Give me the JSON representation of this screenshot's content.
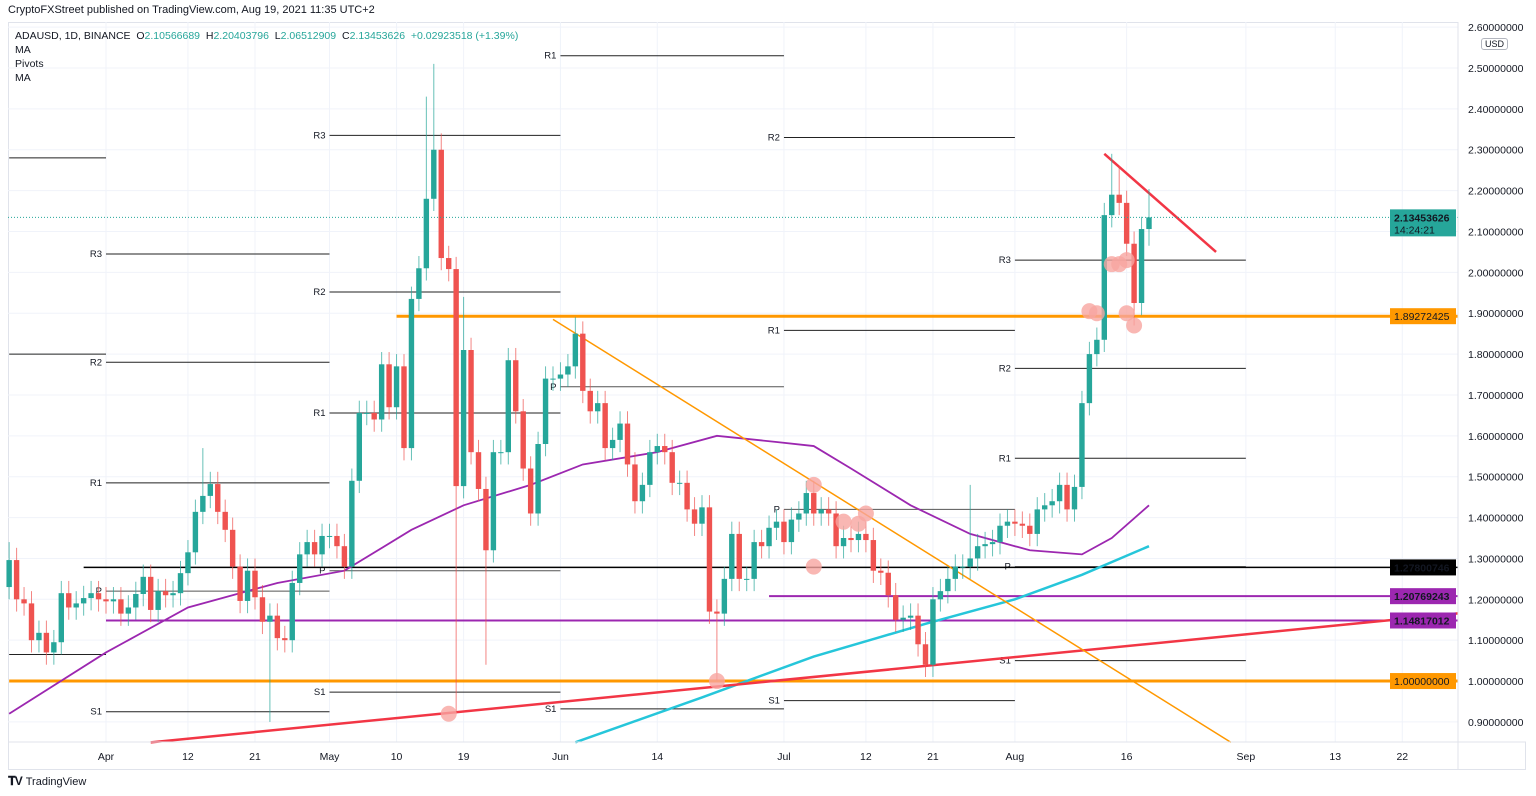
{
  "header": {
    "published": "CryptoFXStreet published on TradingView.com, Aug 19, 2021 11:35 UTC+2",
    "symbol": "ADAUSD, 1D, BINANCE",
    "open_label": "O",
    "open": "2.10566689",
    "high_label": "H",
    "high": "2.20403796",
    "low_label": "L",
    "low": "2.06512909",
    "close_label": "C",
    "close": "2.13453626",
    "change": "+0.02923518 (+1.39%)",
    "indicators": [
      "MA",
      "Pivots",
      "MA"
    ]
  },
  "footer": {
    "logo_text": "TradingView",
    "logo_icon": "tradingview-logo-icon"
  },
  "colors": {
    "up": "#26a69a",
    "down": "#ef5350",
    "orange": "#ff9800",
    "purple": "#9c27b0",
    "cyan": "#26c6da",
    "red_trend": "#f23645",
    "black": "#000000",
    "marker": "#f8a5a0"
  },
  "chart_data": {
    "type": "candlestick",
    "currency": "USD",
    "ylim": [
      0.85,
      2.6
    ],
    "yticks": [
      "2.60000000",
      "2.50000000",
      "2.40000000",
      "2.30000000",
      "2.20000000",
      "2.10000000",
      "2.00000000",
      "1.90000000",
      "1.80000000",
      "1.70000000",
      "1.60000000",
      "1.50000000",
      "1.40000000",
      "1.30000000",
      "1.20000000",
      "1.10000000",
      "1.00000000",
      "0.90000000"
    ],
    "xticks": [
      {
        "label": "Apr",
        "date": "2021-04-01"
      },
      {
        "label": "12",
        "date": "2021-04-12"
      },
      {
        "label": "21",
        "date": "2021-04-21"
      },
      {
        "label": "May",
        "date": "2021-05-01"
      },
      {
        "label": "10",
        "date": "2021-05-10"
      },
      {
        "label": "19",
        "date": "2021-05-19"
      },
      {
        "label": "Jun",
        "date": "2021-06-01"
      },
      {
        "label": "14",
        "date": "2021-06-14"
      },
      {
        "label": "Jul",
        "date": "2021-07-01"
      },
      {
        "label": "12",
        "date": "2021-07-12"
      },
      {
        "label": "21",
        "date": "2021-07-21"
      },
      {
        "label": "Aug",
        "date": "2021-08-01"
      },
      {
        "label": "16",
        "date": "2021-08-16"
      },
      {
        "label": "Sep",
        "date": "2021-09-01"
      },
      {
        "label": "13",
        "date": "2021-09-13"
      },
      {
        "label": "22",
        "date": "2021-09-22"
      }
    ],
    "x_range": [
      "2021-03-19",
      "2021-09-29"
    ],
    "candles": {
      "first_date": "2021-03-19",
      "first_open": 1.23,
      "close": [
        1.296,
        1.2,
        1.19,
        1.1,
        1.118,
        1.07,
        1.095,
        1.215,
        1.18,
        1.19,
        1.203,
        1.215,
        1.2,
        1.195,
        1.2,
        1.165,
        1.18,
        1.213,
        1.255,
        1.174,
        1.22,
        1.21,
        1.215,
        1.264,
        1.315,
        1.414,
        1.453,
        1.482,
        1.414,
        1.37,
        1.28,
        1.196,
        1.27,
        1.205,
        1.145,
        1.16,
        1.105,
        1.1,
        1.24,
        1.31,
        1.34,
        1.31,
        1.355,
        1.355,
        1.33,
        1.28,
        1.49,
        1.656,
        1.656,
        1.64,
        1.775,
        1.67,
        1.77,
        1.57,
        1.935,
        2.01,
        2.18,
        2.3,
        2.035,
        2.008,
        1.477,
        1.81,
        1.56,
        1.47,
        1.32,
        1.56,
        1.56,
        1.785,
        1.66,
        1.52,
        1.41,
        1.58,
        1.74,
        1.74,
        1.75,
        1.77,
        1.85,
        1.71,
        1.66,
        1.68,
        1.57,
        1.59,
        1.63,
        1.53,
        1.44,
        1.48,
        1.56,
        1.575,
        1.56,
        1.485,
        1.485,
        1.42,
        1.385,
        1.425,
        1.17,
        1.165,
        1.25,
        1.36,
        1.25,
        1.25,
        1.34,
        1.33,
        1.375,
        1.39,
        1.34,
        1.395,
        1.41,
        1.46,
        1.41,
        1.42,
        1.41,
        1.33,
        1.35,
        1.345,
        1.36,
        1.345,
        1.27,
        1.265,
        1.21,
        1.15,
        1.155,
        1.16,
        1.09,
        1.04,
        1.2,
        1.22,
        1.25,
        1.28,
        1.28,
        1.3,
        1.33,
        1.335,
        1.34,
        1.38,
        1.39,
        1.385,
        1.38,
        1.36,
        1.42,
        1.43,
        1.44,
        1.48,
        1.42,
        1.475,
        1.68,
        1.8,
        1.835,
        2.14,
        2.19,
        2.17,
        2.07,
        1.925,
        2.106,
        2.1345
      ],
      "extremes": [
        {
          "date": "2021-03-19",
          "high": 1.34
        },
        {
          "date": "2021-04-14",
          "high": 1.57
        },
        {
          "date": "2021-04-23",
          "low": 0.9
        },
        {
          "date": "2021-05-14",
          "high": 2.43
        },
        {
          "date": "2021-05-15",
          "high": 2.51
        },
        {
          "date": "2021-05-16",
          "high": 2.34
        },
        {
          "date": "2021-05-18",
          "low": 0.92
        },
        {
          "date": "2021-05-19",
          "high": 1.94
        },
        {
          "date": "2021-05-22",
          "low": 1.04
        },
        {
          "date": "2021-06-03",
          "high": 1.89
        },
        {
          "date": "2021-06-22",
          "low": 1.0
        },
        {
          "date": "2021-07-04",
          "high": 1.49
        },
        {
          "date": "2021-07-20",
          "low": 1.01
        },
        {
          "date": "2021-07-26",
          "high": 1.48
        },
        {
          "date": "2021-08-14",
          "high": 2.29
        },
        {
          "date": "2021-08-15",
          "high": 2.26
        },
        {
          "date": "2021-08-17",
          "low": 1.87
        },
        {
          "date": "2021-08-19",
          "high": 2.204,
          "low": 2.065
        }
      ]
    },
    "last_price": {
      "value": "2.13453626",
      "countdown": "14:24:21"
    },
    "horizontal_levels": [
      {
        "value": "1.89272425",
        "price": 1.89272425,
        "color": "#ff9800",
        "from": "2021-05-10"
      },
      {
        "value": "1.27800746",
        "price": 1.27800746,
        "color": "#000000",
        "from": "2021-03-29"
      },
      {
        "value": "1.20769243",
        "price": 1.20769243,
        "color": "#9c27b0",
        "from": "2021-06-29"
      },
      {
        "value": "1.14817012",
        "price": 1.14817012,
        "color": "#9c27b0",
        "from": "2021-04-01"
      },
      {
        "value": "1.00000000",
        "price": 1.0,
        "color": "#ff9800",
        "from": "2021-03-19"
      }
    ],
    "trendlines": [
      {
        "color": "#f23645",
        "points": [
          [
            "2021-04-07",
            0.85
          ],
          [
            "2021-10-02",
            1.17
          ]
        ]
      },
      {
        "color": "#ff9800",
        "points": [
          [
            "2021-05-31",
            1.885
          ],
          [
            "2021-08-30",
            0.85
          ]
        ]
      },
      {
        "color": "#f23645",
        "points": [
          [
            "2021-08-13",
            2.29
          ],
          [
            "2021-08-28",
            2.05
          ]
        ]
      }
    ],
    "moving_averages": [
      {
        "color": "#9c27b0",
        "points": [
          [
            "2021-03-19",
            0.92
          ],
          [
            "2021-04-01",
            1.07
          ],
          [
            "2021-04-12",
            1.18
          ],
          [
            "2021-04-24",
            1.24
          ],
          [
            "2021-05-03",
            1.27
          ],
          [
            "2021-05-12",
            1.37
          ],
          [
            "2021-05-19",
            1.43
          ],
          [
            "2021-05-28",
            1.48
          ],
          [
            "2021-06-04",
            1.53
          ],
          [
            "2021-06-14",
            1.56
          ],
          [
            "2021-06-22",
            1.6
          ],
          [
            "2021-06-30",
            1.585
          ],
          [
            "2021-07-05",
            1.575
          ],
          [
            "2021-07-10",
            1.52
          ],
          [
            "2021-07-18",
            1.43
          ],
          [
            "2021-07-26",
            1.36
          ],
          [
            "2021-08-03",
            1.32
          ],
          [
            "2021-08-10",
            1.31
          ],
          [
            "2021-08-14",
            1.35
          ],
          [
            "2021-08-19",
            1.43
          ]
        ]
      },
      {
        "color": "#26c6da",
        "points": [
          [
            "2021-06-03",
            0.85
          ],
          [
            "2021-06-20",
            0.96
          ],
          [
            "2021-07-05",
            1.06
          ],
          [
            "2021-07-20",
            1.14
          ],
          [
            "2021-08-01",
            1.2
          ],
          [
            "2021-08-10",
            1.26
          ],
          [
            "2021-08-19",
            1.33
          ]
        ]
      }
    ],
    "pivot_sets": [
      {
        "from": "2021-03-19",
        "to": "2021-04-01",
        "levels": [
          {
            "label": "",
            "price": 2.28
          },
          {
            "label": "",
            "price": 1.8
          },
          {
            "label": "",
            "price": 1.065
          }
        ]
      },
      {
        "from": "2021-04-01",
        "to": "2021-05-01",
        "levels": [
          {
            "label": "R3",
            "price": 2.045
          },
          {
            "label": "R2",
            "price": 1.78
          },
          {
            "label": "R1",
            "price": 1.485
          },
          {
            "label": "P",
            "price": 1.22
          },
          {
            "label": "S1",
            "price": 0.925
          }
        ]
      },
      {
        "from": "2021-05-01",
        "to": "2021-06-01",
        "levels": [
          {
            "label": "R3",
            "price": 2.335
          },
          {
            "label": "R2",
            "price": 1.952
          },
          {
            "label": "R1",
            "price": 1.656
          },
          {
            "label": "P",
            "price": 1.27
          },
          {
            "label": "S1",
            "price": 0.973
          }
        ]
      },
      {
        "from": "2021-06-01",
        "to": "2021-07-01",
        "levels": [
          {
            "label": "R1",
            "price": 2.53
          },
          {
            "label": "P",
            "price": 1.72
          },
          {
            "label": "S1",
            "price": 0.932
          }
        ]
      },
      {
        "from": "2021-07-01",
        "to": "2021-08-01",
        "levels": [
          {
            "label": "R2",
            "price": 2.33
          },
          {
            "label": "R1",
            "price": 1.858
          },
          {
            "label": "P",
            "price": 1.42
          },
          {
            "label": "S1",
            "price": 0.952
          }
        ]
      },
      {
        "from": "2021-08-01",
        "to": "2021-09-01",
        "levels": [
          {
            "label": "R3",
            "price": 2.03
          },
          {
            "label": "R2",
            "price": 1.765
          },
          {
            "label": "R1",
            "price": 1.545
          },
          {
            "label": "P",
            "price": 1.28
          },
          {
            "label": "S1",
            "price": 1.05
          }
        ]
      }
    ],
    "markers": [
      [
        "2021-05-17",
        0.92
      ],
      [
        "2021-06-22",
        1.0
      ],
      [
        "2021-07-05",
        1.28
      ],
      [
        "2021-07-05",
        1.48
      ],
      [
        "2021-07-09",
        1.39
      ],
      [
        "2021-07-11",
        1.385
      ],
      [
        "2021-07-12",
        1.41
      ],
      [
        "2021-08-11",
        1.905
      ],
      [
        "2021-08-12",
        1.9
      ],
      [
        "2021-08-14",
        2.02
      ],
      [
        "2021-08-15",
        2.02
      ],
      [
        "2021-08-16",
        2.03
      ],
      [
        "2021-08-16",
        1.9
      ],
      [
        "2021-08-17",
        1.87
      ]
    ]
  }
}
